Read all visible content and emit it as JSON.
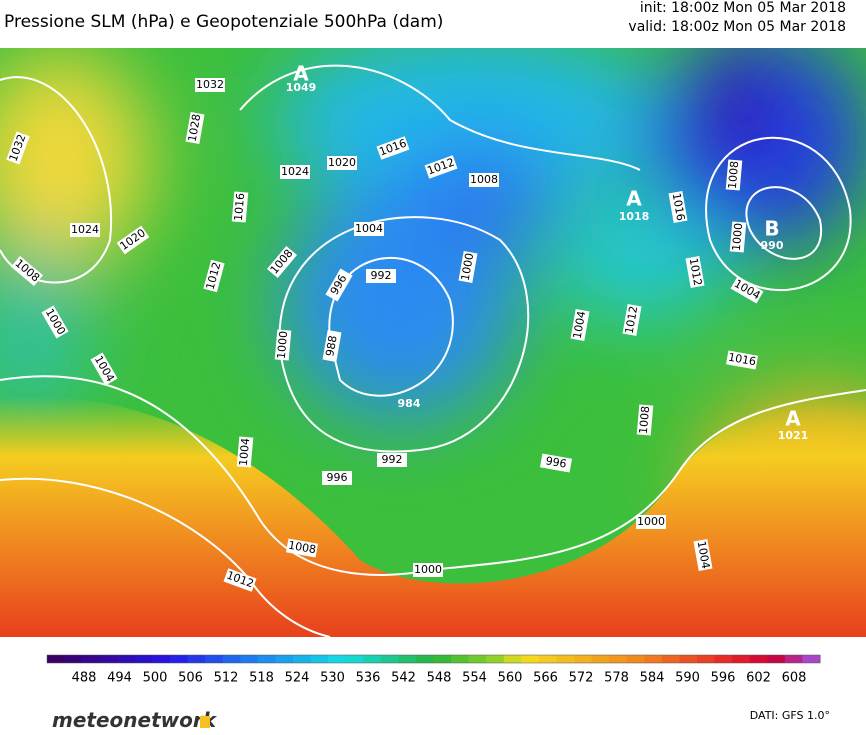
{
  "header": {
    "title": "Pressione SLM (hPa) e Geopotenziale 500hPa (dam)",
    "init": "init: 18:00z Mon 05 Mar 2018",
    "valid": "valid: 18:00z Mon 05 Mar 2018"
  },
  "isobar_labels": [
    1032,
    1028,
    1032,
    1024,
    1020,
    1016,
    1012,
    1008,
    1016,
    1024,
    1020,
    1004,
    1012,
    1008,
    996,
    992,
    1008,
    1000,
    1004,
    1000,
    988,
    1000,
    1004,
    1012,
    1016,
    1012,
    1008,
    1000,
    1004,
    1016,
    1008,
    992,
    996,
    996,
    1004,
    1000,
    1004,
    1008,
    1000,
    1012
  ],
  "centers": [
    {
      "letter": "A",
      "value": 1049
    },
    {
      "letter": "A",
      "value": 1018
    },
    {
      "letter": "B",
      "value": 990
    },
    {
      "letter": "A",
      "value": 1021
    },
    {
      "value": 984
    }
  ],
  "colorbar": {
    "ticks": [
      488,
      494,
      500,
      506,
      512,
      518,
      524,
      530,
      536,
      542,
      548,
      554,
      560,
      566,
      572,
      578,
      584,
      590,
      596,
      602,
      608
    ]
  },
  "footer": {
    "logo": "meteonetwork",
    "credit": "DATI: GFS 1.0°"
  }
}
